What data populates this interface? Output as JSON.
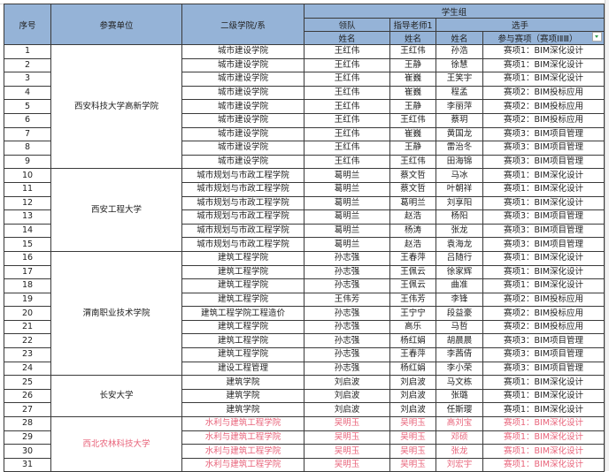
{
  "header": {
    "serial": "序号",
    "unit": "参赛单位",
    "college": "二级学院/系",
    "group": "学生组",
    "leader": "领队",
    "teacher": "指导老师1",
    "player": "选手",
    "name": "姓名",
    "event": "参与赛项（赛项ⅠⅡⅢ）"
  },
  "colors": {
    "header_bg": "#95b3d7",
    "highlight_red": "#e8637a"
  },
  "units": [
    {
      "name": "西安科技大学高新学院",
      "count": 9,
      "red": false
    },
    {
      "name": "西安工程大学",
      "count": 6,
      "red": false
    },
    {
      "name": "渭南职业技术学院",
      "count": 9,
      "red": false
    },
    {
      "name": "长安大学",
      "count": 3,
      "red": false
    },
    {
      "name": "西北农林科技大学",
      "count": 4,
      "red": true
    }
  ],
  "rows": [
    [
      "1",
      "城市建设学院",
      "王红伟",
      "王红伟",
      "孙浩",
      "赛项1：BIM深化设计"
    ],
    [
      "2",
      "城市建设学院",
      "王红伟",
      "王静",
      "徐慧",
      "赛项1：BIM深化设计"
    ],
    [
      "3",
      "城市建设学院",
      "王红伟",
      "崔巍",
      "王笑宇",
      "赛项1：BIM深化设计"
    ],
    [
      "4",
      "城市建设学院",
      "王红伟",
      "崔巍",
      "程孟",
      "赛项2：BIM投标应用"
    ],
    [
      "5",
      "城市建设学院",
      "王红伟",
      "王静",
      "李丽萍",
      "赛项2：BIM投标应用"
    ],
    [
      "6",
      "城市建设学院",
      "王红伟",
      "王红伟",
      "蔡玥",
      "赛项2：BIM投标应用"
    ],
    [
      "7",
      "城市建设学院",
      "王红伟",
      "崔巍",
      "黄国龙",
      "赛项3：BIM项目管理"
    ],
    [
      "8",
      "城市建设学院",
      "王红伟",
      "王静",
      "雷治冬",
      "赛项3：BIM项目管理"
    ],
    [
      "9",
      "城市建设学院",
      "王红伟",
      "王红伟",
      "田海锦",
      "赛项3：BIM项目管理"
    ],
    [
      "10",
      "城市规划与市政工程学院",
      "葛明兰",
      "蔡文哲",
      "马冰",
      "赛项1：BIM深化设计"
    ],
    [
      "11",
      "城市规划与市政工程学院",
      "葛明兰",
      "蔡文哲",
      "叶朝祥",
      "赛项1：BIM深化设计"
    ],
    [
      "12",
      "城市规划与市政工程学院",
      "葛明兰",
      "葛明兰",
      "刘享阳",
      "赛项1：BIM深化设计"
    ],
    [
      "13",
      "城市规划与市政工程学院",
      "葛明兰",
      "赵浩",
      "杨阳",
      "赛项3：BIM项目管理"
    ],
    [
      "14",
      "城市规划与市政工程学院",
      "葛明兰",
      "杨涛",
      "张龙",
      "赛项3：BIM项目管理"
    ],
    [
      "15",
      "城市规划与市政工程学院",
      "葛明兰",
      "赵浩",
      "袁海龙",
      "赛项3：BIM项目管理"
    ],
    [
      "16",
      "建筑工程学院",
      "孙志强",
      "王春萍",
      "吕随行",
      "赛项1：BIM深化设计"
    ],
    [
      "17",
      "建筑工程学院",
      "孙志强",
      "王佩云",
      "徐家辉",
      "赛项1：BIM深化设计"
    ],
    [
      "18",
      "建筑工程学院",
      "孙志强",
      "王佩云",
      "曲准",
      "赛项1：BIM深化设计"
    ],
    [
      "19",
      "建筑工程学院",
      "王伟芳",
      "王伟芳",
      "李锋",
      "赛项2：BIM投标应用"
    ],
    [
      "20",
      "建筑工程学院工程造价",
      "孙志强",
      "王宁宁",
      "段益豪",
      "赛项2：BIM投标应用"
    ],
    [
      "21",
      "建筑工程学院",
      "孙志强",
      "高乐",
      "马哲",
      "赛项2：BIM投标应用"
    ],
    [
      "22",
      "建筑工程学院",
      "孙志强",
      "杨红娟",
      "胡晨晨",
      "赛项3：BIM项目管理"
    ],
    [
      "23",
      "建筑工程学院",
      "孙志强",
      "王春萍",
      "李茜倩",
      "赛项3：BIM项目管理"
    ],
    [
      "24",
      "建设工程管理",
      "孙志强",
      "杨红娟",
      "李小荣",
      "赛项3：BIM项目管理"
    ],
    [
      "25",
      "建筑学院",
      "刘启波",
      "刘启波",
      "马文栋",
      "赛项1：BIM深化设计"
    ],
    [
      "26",
      "建筑学院",
      "刘启波",
      "刘启波",
      "张璐",
      "赛项1：BIM深化设计"
    ],
    [
      "27",
      "建筑学院",
      "刘启波",
      "刘启波",
      "任斯璎",
      "赛项1：BIM深化设计"
    ],
    [
      "28",
      "水利与建筑工程学院",
      "吴明玉",
      "吴明玉",
      "高刘宝",
      "赛项1：BIM深化设计"
    ],
    [
      "29",
      "水利与建筑工程学院",
      "吴明玉",
      "吴明玉",
      "邓硕",
      "赛项1：BIM深化设计"
    ],
    [
      "30",
      "水利与建筑工程学院",
      "吴明玉",
      "吴明玉",
      "张龙",
      "赛项1：BIM深化设计"
    ],
    [
      "31",
      "水利与建筑工程学院",
      "吴明玉",
      "吴明玉",
      "刘宏宇",
      "赛项1：BIM深化设计"
    ]
  ]
}
